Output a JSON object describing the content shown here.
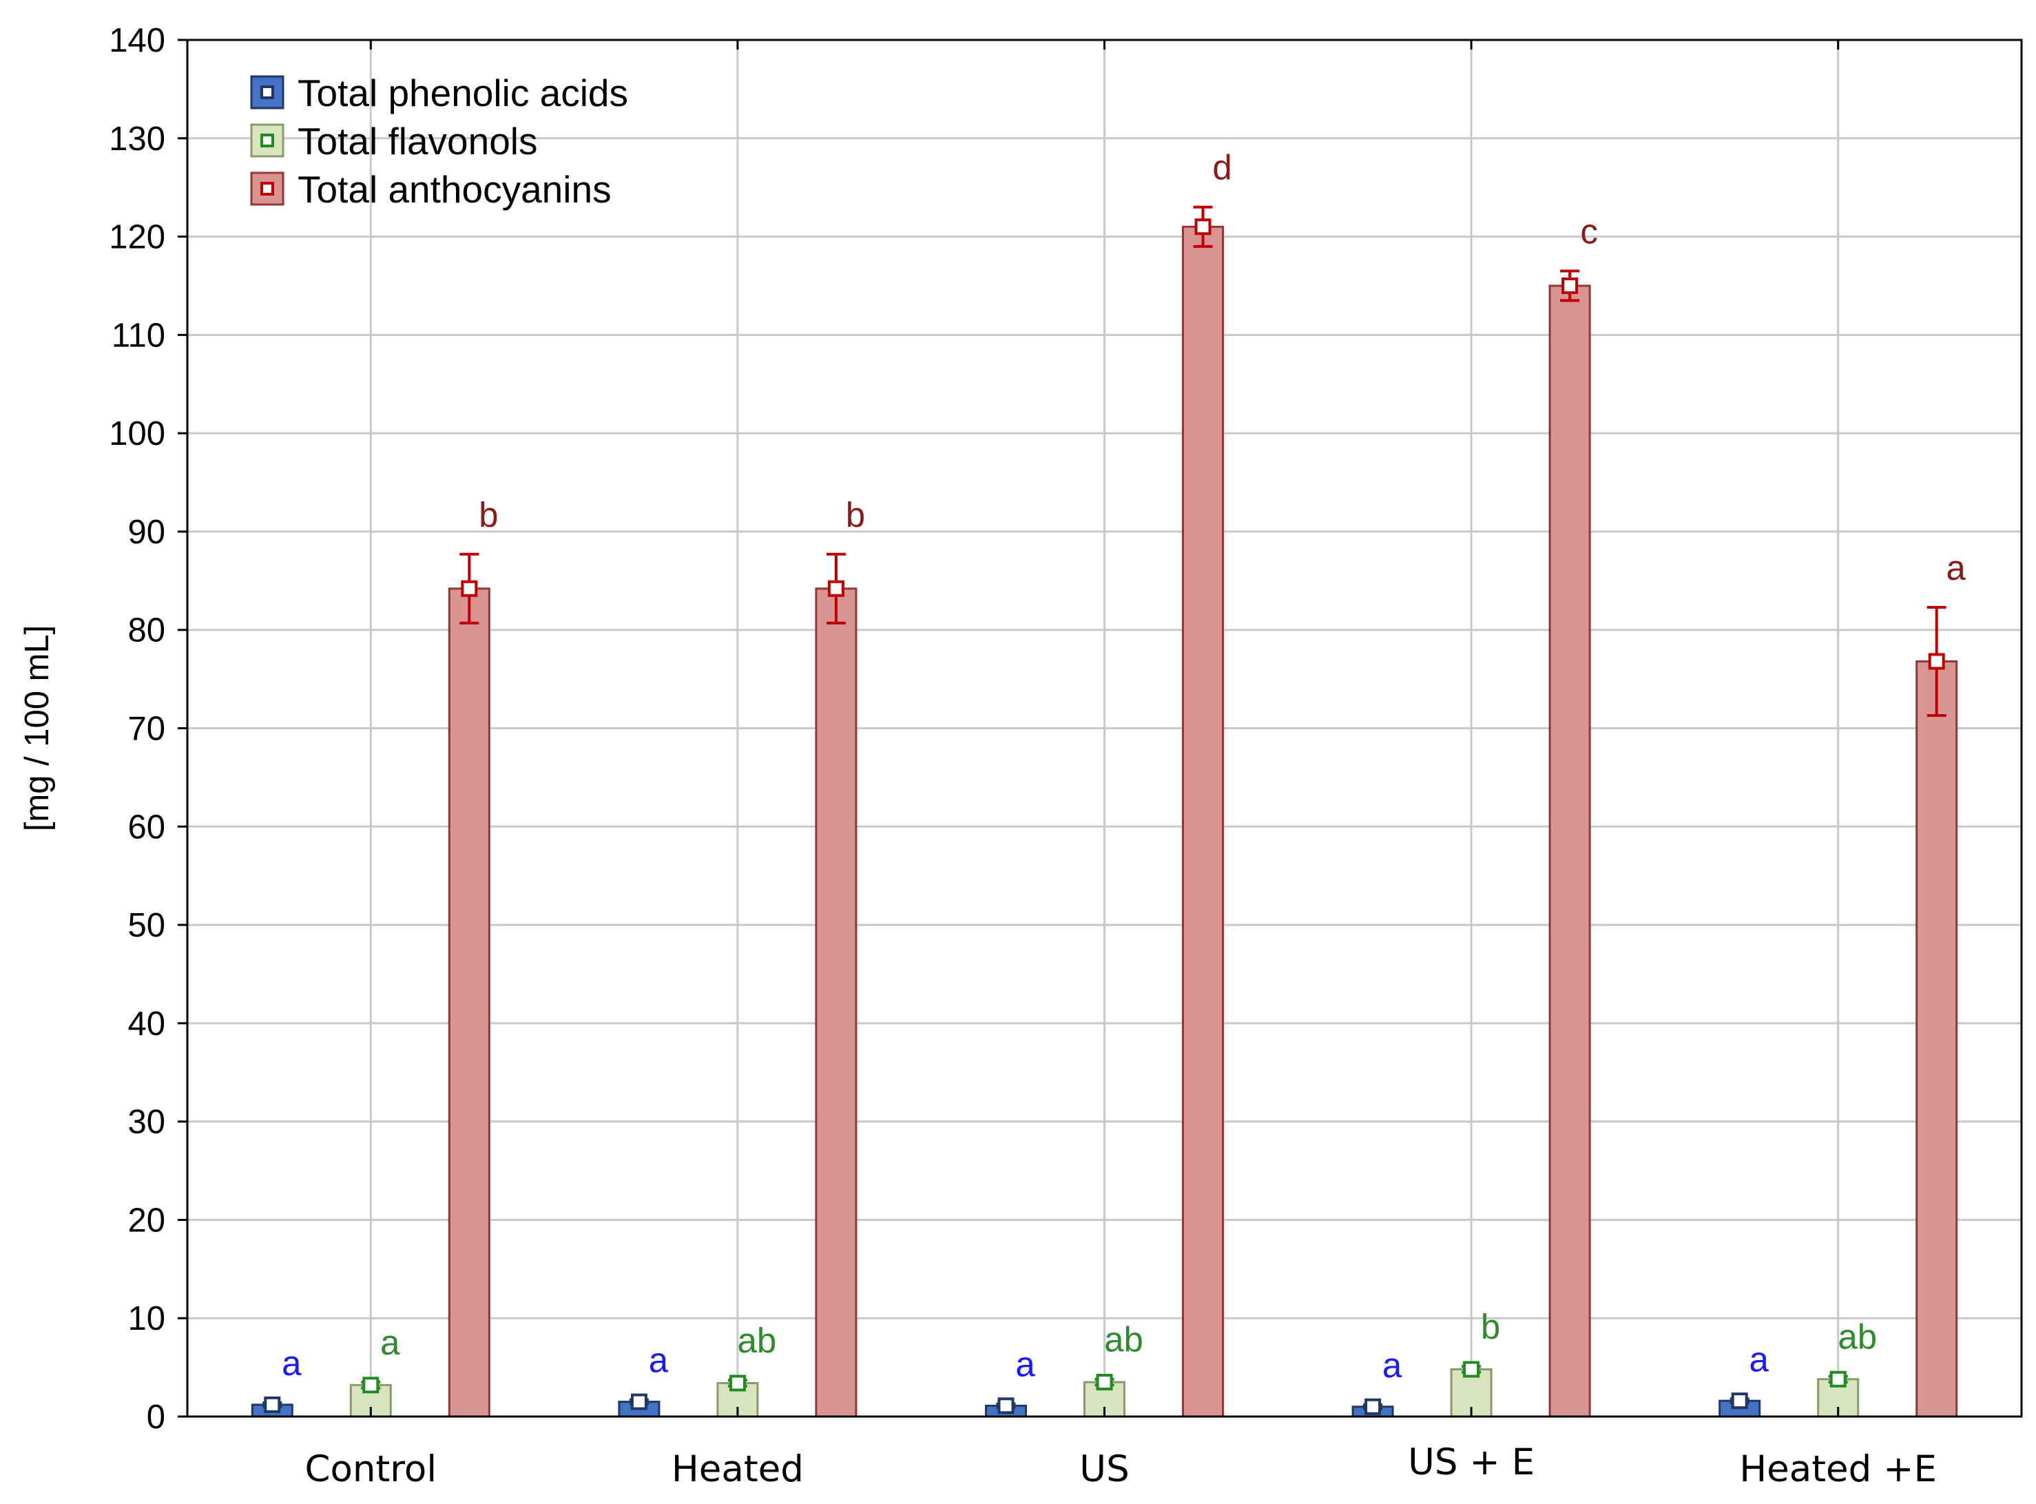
{
  "chart_data": {
    "type": "bar",
    "ylabel": "[mg / 100 mL]",
    "ylim": [
      0,
      140
    ],
    "yticks": [
      0,
      10,
      20,
      30,
      40,
      50,
      60,
      70,
      80,
      90,
      100,
      110,
      120,
      130,
      140
    ],
    "grid": true,
    "legend_position": "top-left",
    "categories": [
      "Control",
      "Heated",
      "US",
      "US + E",
      "Heated +E"
    ],
    "series": [
      {
        "name": "Total phenolic acids",
        "color": "#4472C4",
        "edge_color": "#1F3864",
        "marker_color": "#1F3864",
        "label_color": "#1A1AFF",
        "values": [
          1.2,
          1.5,
          1.1,
          1.0,
          1.6
        ],
        "errors": [
          0.2,
          0.2,
          0.2,
          0.2,
          0.2
        ],
        "labels": [
          "a",
          "a",
          "a",
          "a",
          "a"
        ]
      },
      {
        "name": "Total flavonols",
        "color": "#D9E4BF",
        "edge_color": "#8A9A6A",
        "marker_color": "#1E8C1E",
        "label_color": "#2E8B2E",
        "values": [
          3.2,
          3.4,
          3.5,
          4.8,
          3.8
        ],
        "errors": [
          0.3,
          0.3,
          0.3,
          0.3,
          0.3
        ],
        "labels": [
          "a",
          "ab",
          "ab",
          "b",
          "ab"
        ]
      },
      {
        "name": "Total anthocyanins",
        "color": "#D99594",
        "edge_color": "#963634",
        "marker_color": "#C00000",
        "label_color": "#8B1A1A",
        "values": [
          84.2,
          84.2,
          121.0,
          115.0,
          76.8
        ],
        "errors": [
          3.5,
          3.5,
          2.0,
          1.5,
          5.5
        ],
        "labels": [
          "b",
          "b",
          "d",
          "c",
          "a"
        ]
      }
    ]
  }
}
